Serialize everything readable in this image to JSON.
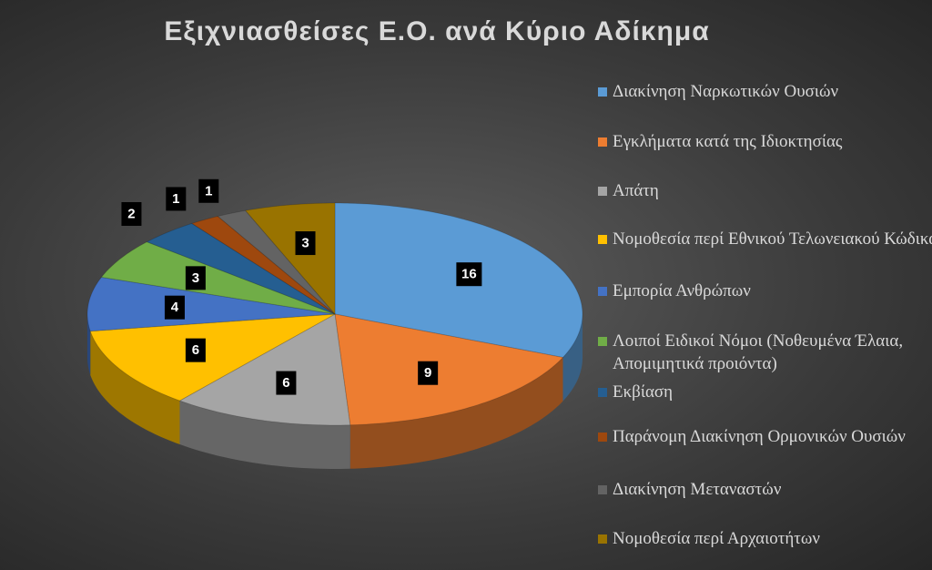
{
  "chart_data": {
    "type": "pie3d",
    "title": "Εξιχνιασθείσες Ε.Ο. ανά Κύριο Αδίκημα",
    "categories": [
      "Διακίνηση Ναρκωτικών Ουσιών",
      "Εγκλήματα κατά της Ιδιοκτησίας",
      "Απάτη",
      "Νομοθεσία περί Εθνικού Τελωνειακού Κώδικα",
      "Εμπορία Ανθρώπων",
      "Λοιποί Ειδικοί Νόμοι (Νοθευμένα Έλαια, Απομιμητικά προιόντα)",
      "Εκβίαση",
      "Παράνομη Διακίνηση Ορμονικών Ουσιών",
      "Διακίνηση Μεταναστών",
      "Νομοθεσία περί Αρχαιοτήτων"
    ],
    "values": [
      16,
      9,
      6,
      6,
      4,
      3,
      2,
      1,
      1,
      3
    ],
    "colors": [
      "#5b9bd5",
      "#ed7d31",
      "#a5a5a5",
      "#ffc000",
      "#4472c4",
      "#70ad47",
      "#255e91",
      "#9e480e",
      "#636363",
      "#997300"
    ],
    "legend": "right"
  }
}
